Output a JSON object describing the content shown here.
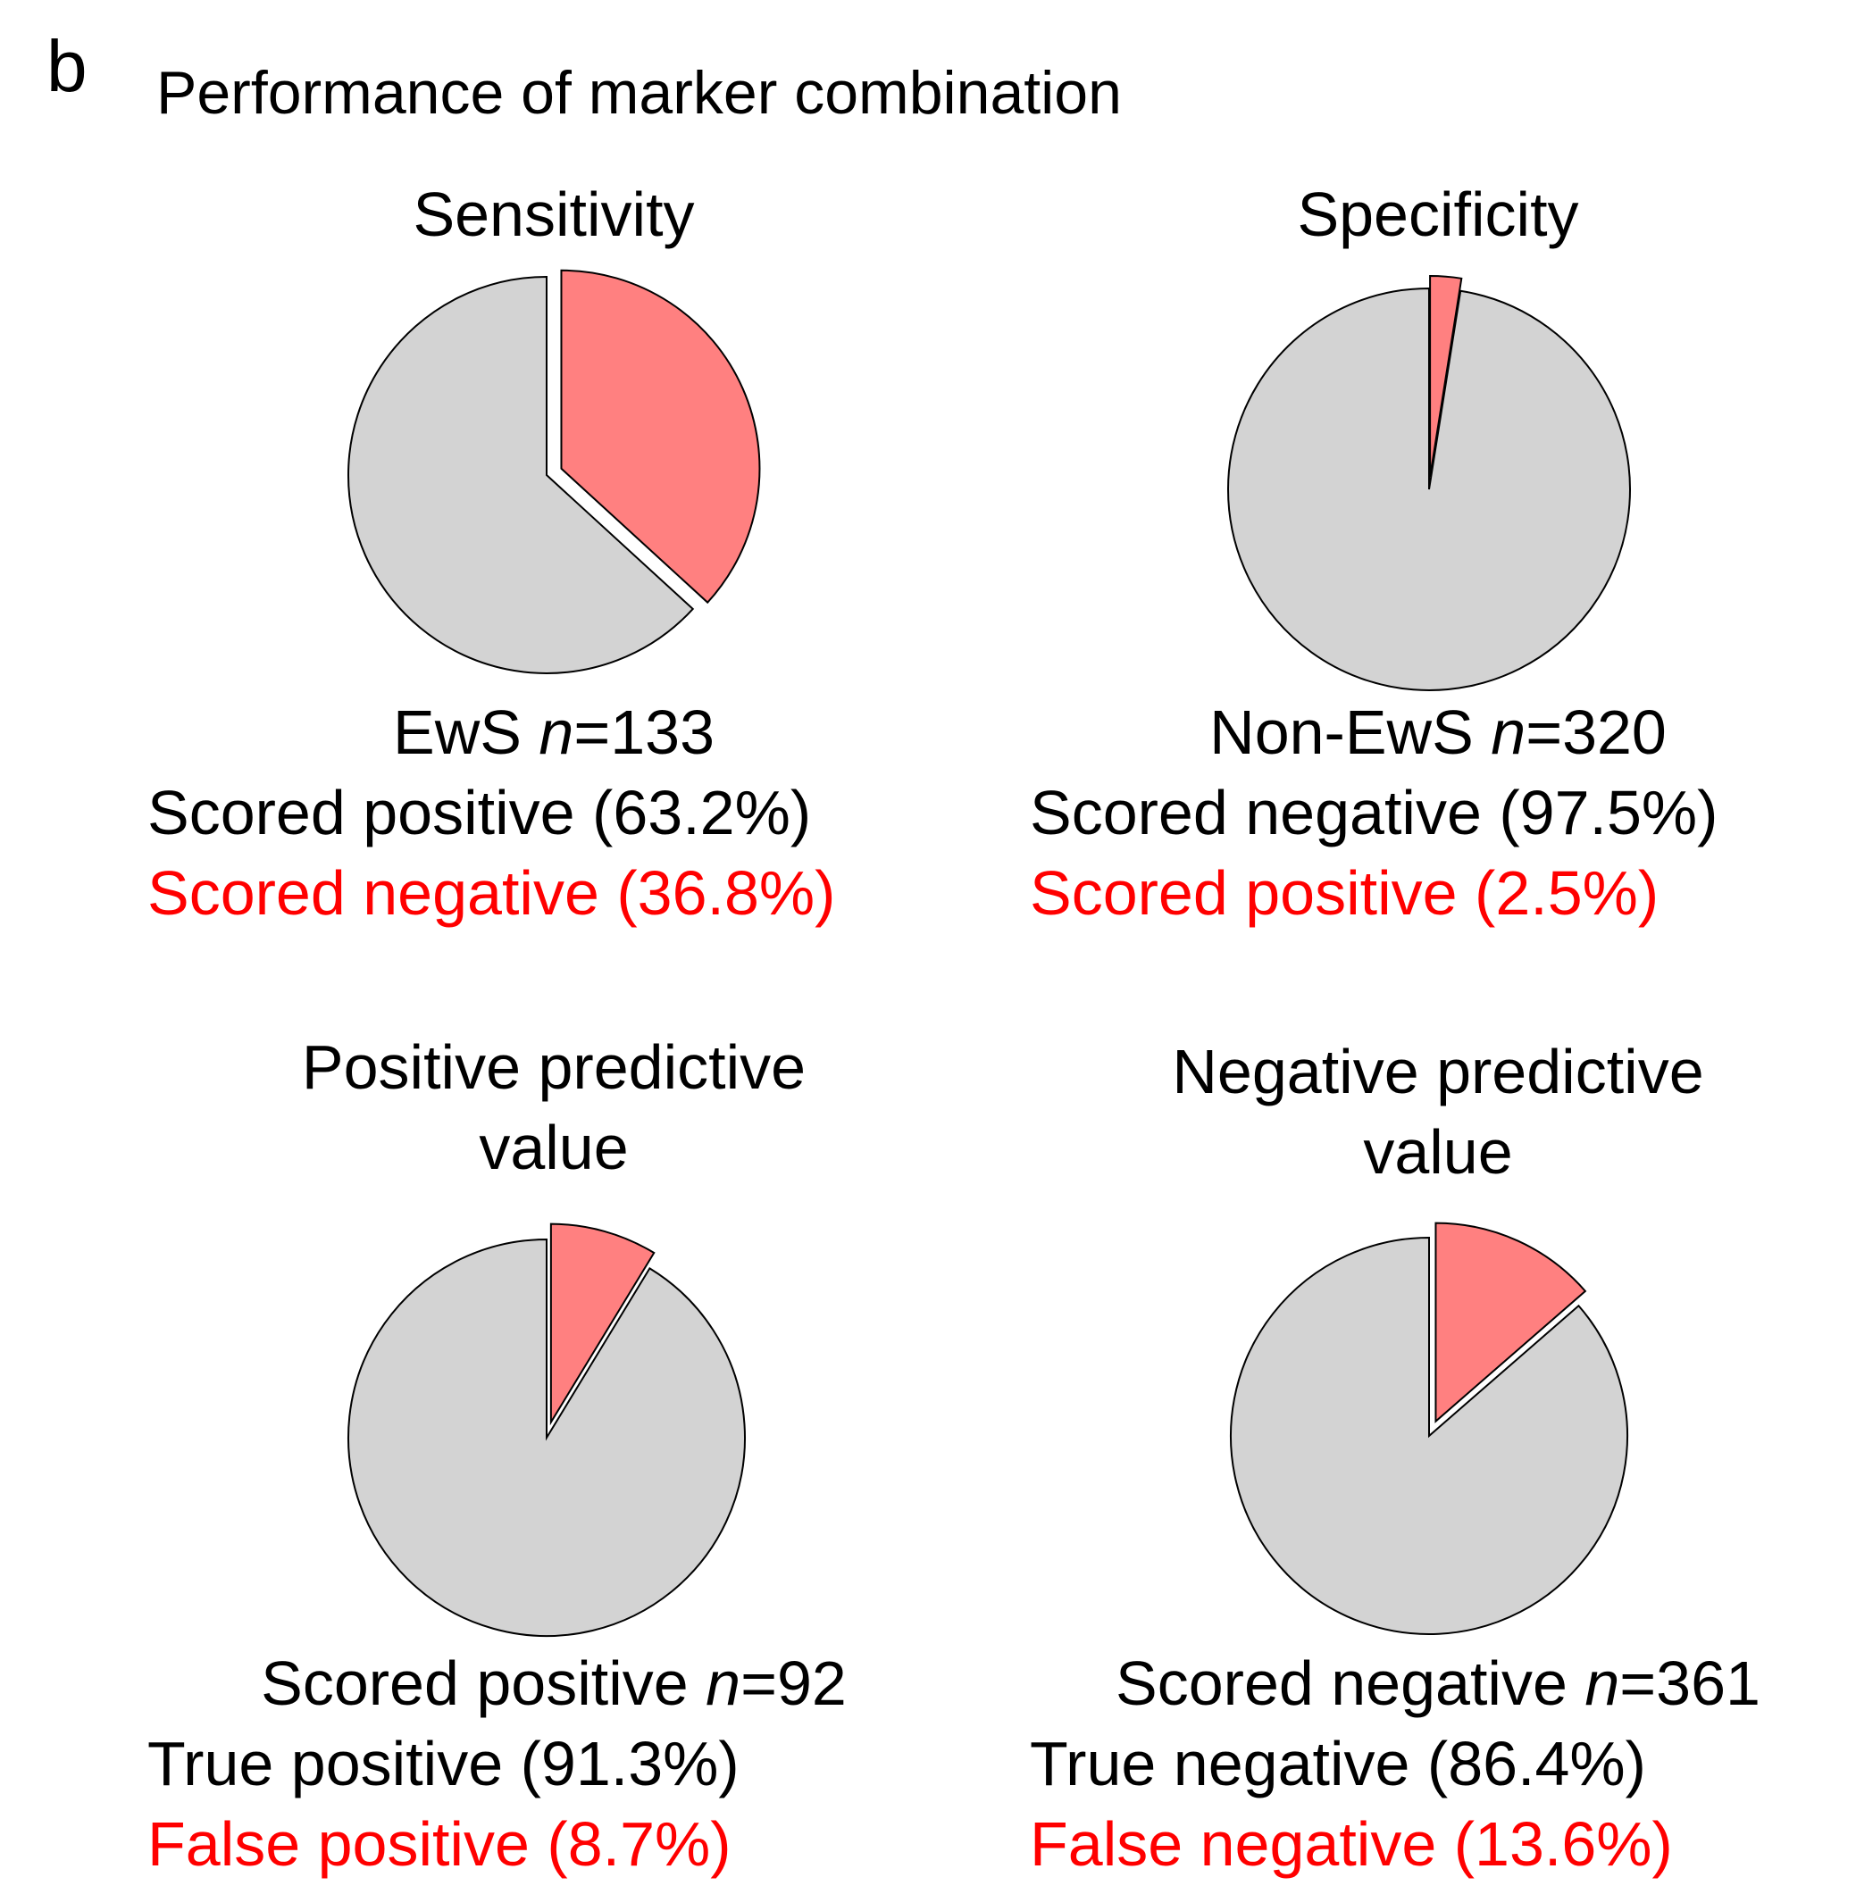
{
  "panel_label": "b",
  "title": "Performance of marker combination",
  "colors": {
    "highlight": "#ff8080",
    "base": "#d3d3d3",
    "outline": "#000000",
    "red_text": "#ff0000"
  },
  "chart_data": [
    {
      "type": "pie",
      "title": "Sensitivity",
      "slices": [
        {
          "label": "Scored negative",
          "value": 36.8,
          "color": "#ff8080",
          "exploded": true
        },
        {
          "label": "Scored positive",
          "value": 63.2,
          "color": "#d3d3d3",
          "exploded": false
        }
      ],
      "caption": {
        "n_prefix": "EwS ",
        "n_value": "=133",
        "line1": "Scored positive (63.2%)",
        "line2": "Scored negative (36.8%)"
      }
    },
    {
      "type": "pie",
      "title": "Specificity",
      "slices": [
        {
          "label": "Scored positive",
          "value": 2.5,
          "color": "#ff8080",
          "exploded": true
        },
        {
          "label": "Scored negative",
          "value": 97.5,
          "color": "#d3d3d3",
          "exploded": false
        }
      ],
      "caption": {
        "n_prefix": "Non-EwS ",
        "n_value": "=320",
        "line1": "Scored negative (97.5%)",
        "line2": "Scored positive (2.5%)"
      }
    },
    {
      "type": "pie",
      "title_lines": [
        "Positive predictive",
        "value"
      ],
      "slices": [
        {
          "label": "False positive",
          "value": 8.7,
          "color": "#ff8080",
          "exploded": true
        },
        {
          "label": "True positive",
          "value": 91.3,
          "color": "#d3d3d3",
          "exploded": false
        }
      ],
      "caption": {
        "n_prefix": "Scored positive ",
        "n_value": "=92",
        "line1": "True positive (91.3%)",
        "line2": "False positive (8.7%)"
      }
    },
    {
      "type": "pie",
      "title_lines": [
        "Negative predictive",
        "value"
      ],
      "slices": [
        {
          "label": "False negative",
          "value": 13.6,
          "color": "#ff8080",
          "exploded": true
        },
        {
          "label": "True negative",
          "value": 86.4,
          "color": "#d3d3d3",
          "exploded": false
        }
      ],
      "caption": {
        "n_prefix": "Scored negative ",
        "n_value": "=361",
        "line1": "True negative (86.4%)",
        "line2": "False negative (13.6%)"
      }
    }
  ],
  "n_symbol": "n"
}
